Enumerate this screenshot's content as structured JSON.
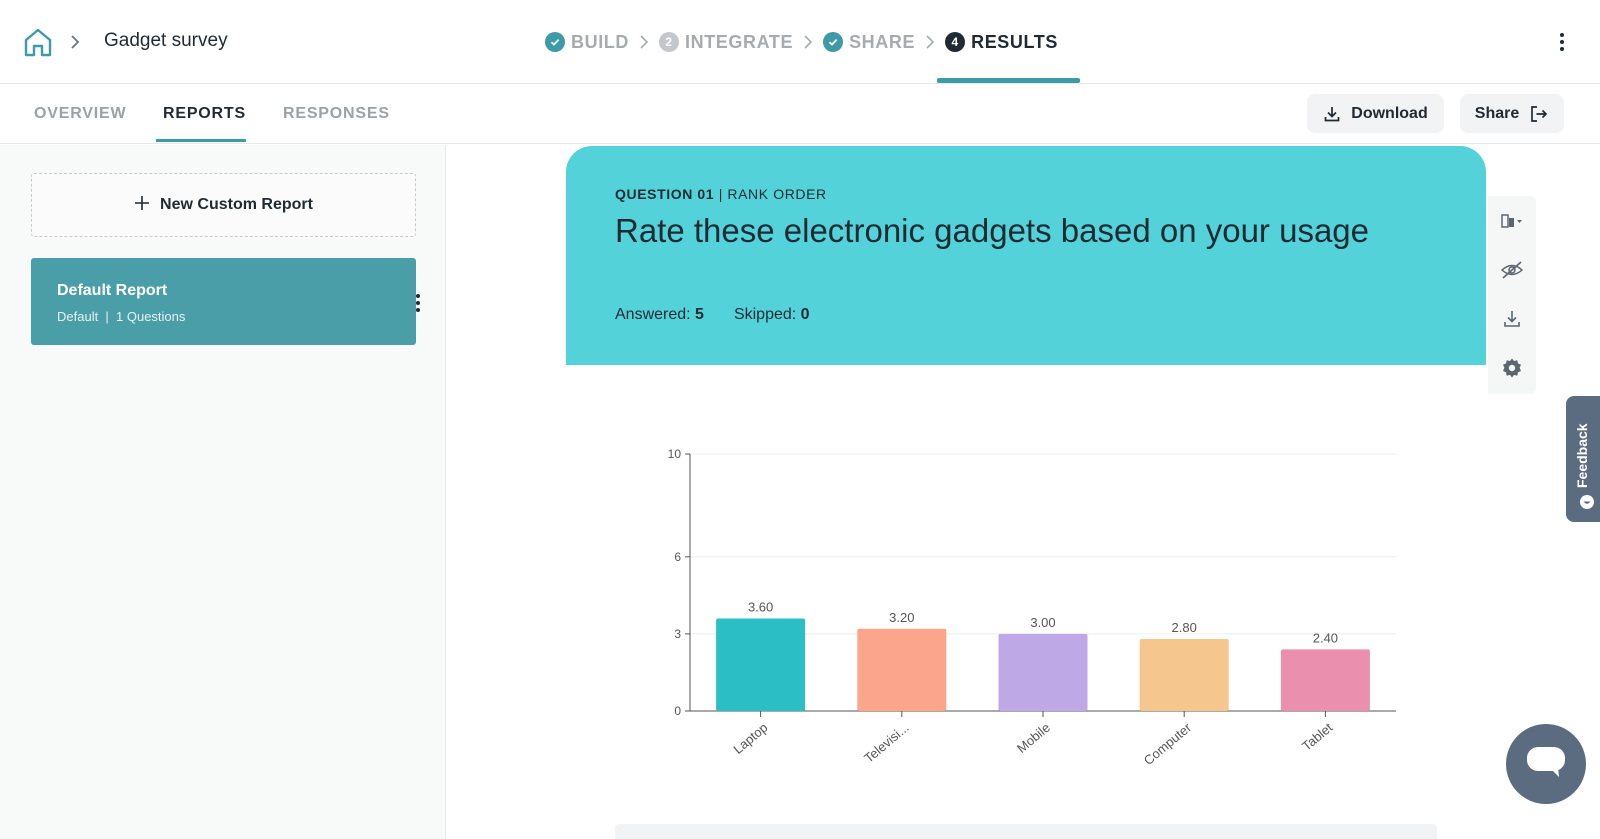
{
  "topbar": {
    "home_icon": "home-icon",
    "survey_title": "Gadget survey",
    "steps": [
      {
        "label": "BUILD",
        "state": "done",
        "badge": ""
      },
      {
        "label": "INTEGRATE",
        "state": "pending",
        "badge": "2"
      },
      {
        "label": "SHARE",
        "state": "done",
        "badge": ""
      },
      {
        "label": "RESULTS",
        "state": "active",
        "badge": "4"
      }
    ]
  },
  "subnav": {
    "tabs": [
      {
        "label": "OVERVIEW",
        "active": false
      },
      {
        "label": "REPORTS",
        "active": true
      },
      {
        "label": "RESPONSES",
        "active": false
      }
    ],
    "download_label": "Download",
    "share_label": "Share"
  },
  "sidebar": {
    "new_report_label": "New Custom Report",
    "reports": [
      {
        "title": "Default Report",
        "subtitle": "Default  |  1 Questions"
      }
    ]
  },
  "question": {
    "number_label": "QUESTION 01",
    "type_label": "| RANK ORDER",
    "title": "Rate these electronic gadgets based on your usage",
    "answered_label": "Answered:",
    "answered_value": "5",
    "skipped_label": "Skipped:",
    "skipped_value": "0"
  },
  "chart_data": {
    "type": "bar",
    "categories": [
      "Laptop",
      "Televisi...",
      "Mobile",
      "Computer",
      "Tablet"
    ],
    "values": [
      3.6,
      3.2,
      3.0,
      2.8,
      2.4
    ],
    "value_labels": [
      "3.60",
      "3.20",
      "3.00",
      "2.80",
      "2.40"
    ],
    "colors": [
      "#2bbec4",
      "#fba68c",
      "#bea8e6",
      "#f5c78e",
      "#ea90ae"
    ],
    "yticks": [
      0,
      3,
      6,
      10
    ],
    "ylim": [
      0,
      10
    ],
    "grid": true
  },
  "feedback": {
    "label": "Feedback"
  },
  "colors": {
    "accent": "#3d9aa7",
    "header": "#53d3d9",
    "report_card": "#4a9ea7"
  }
}
